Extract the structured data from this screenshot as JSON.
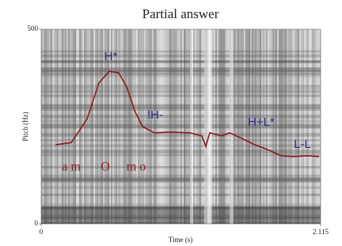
{
  "chart_data": {
    "type": "line",
    "title": "Partial answer",
    "x_label": "Time (s)",
    "y_label": "Pitch (Hz)",
    "xlim": [
      0,
      2.115
    ],
    "xticks": [
      0,
      2.115
    ],
    "ylim": [
      0,
      500
    ],
    "yticks": [
      0,
      500
    ],
    "series": [
      {
        "color": "#8b1a1a",
        "x": [
          0.108,
          0.228,
          0.348,
          0.437,
          0.515,
          0.587,
          0.647,
          0.707,
          0.767,
          0.857,
          0.977,
          1.126,
          1.216,
          1.246,
          1.276,
          1.366,
          1.426,
          1.516,
          1.606,
          1.726,
          1.815,
          1.905,
          2.025,
          2.103
        ],
        "values": [
          203,
          209,
          270,
          362,
          392,
          388,
          352,
          291,
          250,
          234,
          236,
          234,
          226,
          199,
          234,
          226,
          234,
          220,
          205,
          189,
          175,
          173,
          175,
          173
        ]
      }
    ],
    "tone_labels": [
      "H*",
      "!H-",
      "H+L*",
      "L-L"
    ],
    "segment_labels": [
      "a m",
      "O",
      "m o"
    ]
  }
}
